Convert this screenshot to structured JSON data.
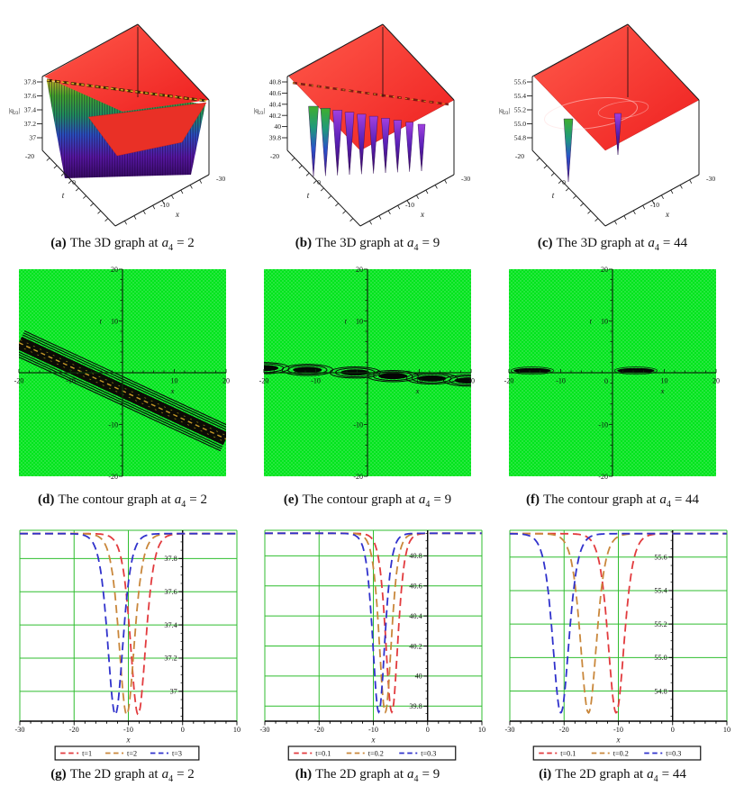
{
  "figure_title": "Nine-panel figure: 3D, contour and 2D graphs of |q23| for a4 = 2, 9, 44",
  "chart_data": [
    {
      "id": "a",
      "type": "surface3d",
      "caption": {
        "tag": "(a)",
        "body": "The 3D graph at",
        "param": "a",
        "sub": "4",
        "eq": "= 2"
      },
      "z_axis": {
        "label_pre": "|q",
        "label_sub": "23",
        "label_post": "|",
        "ticks": [
          "37.8",
          "37.6",
          "37.4",
          "37.2",
          "37"
        ]
      },
      "t_axis": {
        "label": "t",
        "ticks": [
          "-20",
          "0"
        ]
      },
      "x_axis": {
        "label": "x",
        "ticks": [
          "-10",
          "-30"
        ]
      },
      "z_range": [
        36.9,
        37.95
      ],
      "surface": {
        "style": "line-soliton",
        "description": "red plateau plane with one diagonal line-soliton trench; trench wall rendered as striped rainbow curtain",
        "plane_color": "#f2302a"
      }
    },
    {
      "id": "b",
      "type": "surface3d",
      "caption": {
        "tag": "(b)",
        "body": "The 3D graph at",
        "param": "a",
        "sub": "4",
        "eq": "= 9"
      },
      "z_axis": {
        "label_pre": "|q",
        "label_sub": "23",
        "label_post": "|",
        "ticks": [
          "40.8",
          "40.6",
          "40.4",
          "40.2",
          "40",
          "39.8"
        ]
      },
      "t_axis": {
        "label": "t",
        "ticks": [
          "-20",
          "0"
        ]
      },
      "x_axis": {
        "label": "x",
        "ticks": [
          "-10",
          "-30"
        ]
      },
      "z_range": [
        39.8,
        40.9
      ],
      "surface": {
        "style": "spike-row",
        "spike_count": 10,
        "description": "red plateau plane with a periodic row of downward purple spikes",
        "plane_color": "#f2302a"
      }
    },
    {
      "id": "c",
      "type": "surface3d",
      "caption": {
        "tag": "(c)",
        "body": "The 3D graph at",
        "param": "a",
        "sub": "4",
        "eq": "= 44"
      },
      "z_axis": {
        "label_pre": "|q",
        "label_sub": "23",
        "label_post": "|",
        "ticks": [
          "55.6",
          "55.4",
          "55.2",
          "55.0",
          "54.8"
        ]
      },
      "t_axis": {
        "label": "t",
        "ticks": [
          "-20",
          "0"
        ]
      },
      "x_axis": {
        "label": "x",
        "ticks": [
          "-10",
          "-30"
        ]
      },
      "z_range": [
        54.7,
        55.7
      ],
      "surface": {
        "style": "two-spikes",
        "description": "red plateau plane with two isolated narrow downward spikes",
        "plane_color": "#f2302a"
      }
    },
    {
      "id": "d",
      "type": "contour",
      "caption": {
        "tag": "(d)",
        "body": "The contour graph at",
        "param": "a",
        "sub": "4",
        "eq": "= 2"
      },
      "x_axis": {
        "label": "x",
        "range": [
          -20,
          20
        ],
        "ticks": [
          -20,
          -10,
          10,
          20
        ]
      },
      "t_axis": {
        "label": "t",
        "range": [
          -20,
          20
        ],
        "ticks": [
          20,
          10,
          -10,
          -20
        ]
      },
      "background": "#00e41c",
      "feature": {
        "kind": "diagonal-band",
        "from": [
          -20,
          5.8
        ],
        "to": [
          20,
          -12.8
        ],
        "core_width_units": 2.6,
        "centerline_color": "#c89a28"
      }
    },
    {
      "id": "e",
      "type": "contour",
      "caption": {
        "tag": "(e)",
        "body": "The contour graph at",
        "param": "a",
        "sub": "4",
        "eq": "= 9"
      },
      "x_axis": {
        "label": "x",
        "range": [
          -20,
          20
        ],
        "ticks": [
          -20,
          -10,
          10,
          20
        ]
      },
      "t_axis": {
        "label": "t",
        "range": [
          -20,
          20
        ],
        "ticks": [
          20,
          10,
          -10,
          -20
        ]
      },
      "background": "#00e41c",
      "feature": {
        "kind": "blob-row",
        "blobs": [
          [
            -20,
            0.9
          ],
          [
            -11.6,
            0.55
          ],
          [
            -2.4,
            0.05
          ],
          [
            4.9,
            -0.65
          ],
          [
            12.4,
            -1.1
          ],
          [
            19.6,
            -1.5
          ]
        ],
        "rx_units": 2.8,
        "ry_units": 0.6
      }
    },
    {
      "id": "f",
      "type": "contour",
      "caption": {
        "tag": "(f)",
        "body": "The contour graph at",
        "param": "a",
        "sub": "4",
        "eq": "= 44"
      },
      "x_axis": {
        "label": "x",
        "range": [
          -20,
          20
        ],
        "ticks": [
          -20,
          -10,
          10,
          20
        ]
      },
      "t_axis": {
        "label": "t",
        "range": [
          -20,
          20
        ],
        "ticks": [
          20,
          10,
          -10,
          -20
        ]
      },
      "background": "#00e41c",
      "origin_label": "0",
      "feature": {
        "kind": "flat-ellipses",
        "ellipses": [
          [
            -15.5,
            0.4
          ],
          [
            4.5,
            0.4
          ]
        ],
        "rx_units": 3.6,
        "ry_units": 0.5
      }
    },
    {
      "id": "g",
      "type": "line",
      "caption": {
        "tag": "(g)",
        "body": "The 2D graph at",
        "param": "a",
        "sub": "4",
        "eq": "= 2"
      },
      "x_axis": {
        "label": "x",
        "range": [
          -30,
          10
        ],
        "ticks": [
          -30,
          -20,
          -10,
          0,
          10
        ]
      },
      "y_axis": {
        "range": [
          36.82,
          37.97
        ],
        "ticks": [
          {
            "label": "37",
            "v": 37
          },
          {
            "label": "37.2",
            "v": 37.2
          },
          {
            "label": "37.4",
            "v": 37.4
          },
          {
            "label": "37.6",
            "v": 37.6
          },
          {
            "label": "37.8",
            "v": 37.8
          }
        ]
      },
      "baseline": 37.95,
      "series": [
        {
          "name": "t=1",
          "color": "#e23b3e",
          "center": -8.2,
          "width": 1.9,
          "depth": 1.09
        },
        {
          "name": "t=2",
          "color": "#c9873b",
          "center": -10.3,
          "width": 1.9,
          "depth": 1.09
        },
        {
          "name": "t=3",
          "color": "#3032cc",
          "center": -12.4,
          "width": 1.9,
          "depth": 1.09
        }
      ],
      "grid_color": "#2fbe2f"
    },
    {
      "id": "h",
      "type": "line",
      "caption": {
        "tag": "(h)",
        "body": "The 2D graph at",
        "param": "a",
        "sub": "4",
        "eq": "= 9"
      },
      "x_axis": {
        "label": "x",
        "range": [
          -30,
          10
        ],
        "ticks": [
          -30,
          -20,
          -10,
          0,
          10
        ]
      },
      "y_axis": {
        "range": [
          39.7,
          40.97
        ],
        "ticks": [
          {
            "label": "39.8",
            "v": 39.8
          },
          {
            "label": "40",
            "v": 40
          },
          {
            "label": "40.2",
            "v": 40.2
          },
          {
            "label": "40.4",
            "v": 40.4
          },
          {
            "label": "40.6",
            "v": 40.6
          },
          {
            "label": "40.8",
            "v": 40.8
          }
        ]
      },
      "baseline": 40.95,
      "series": [
        {
          "name": "t=0.1",
          "color": "#e23b3e",
          "center": -6.6,
          "width": 1.5,
          "depth": 1.19
        },
        {
          "name": "t=0.2",
          "color": "#c9873b",
          "center": -7.8,
          "width": 1.5,
          "depth": 1.19
        },
        {
          "name": "t=0.3",
          "color": "#3032cc",
          "center": -9.0,
          "width": 1.5,
          "depth": 1.19
        }
      ],
      "grid_color": "#2fbe2f"
    },
    {
      "id": "i",
      "type": "line",
      "caption": {
        "tag": "(i)",
        "body": "The 2D graph at",
        "param": "a",
        "sub": "4",
        "eq": "= 44"
      },
      "x_axis": {
        "label": "x",
        "range": [
          -30,
          10
        ],
        "ticks": [
          -30,
          -20,
          -10,
          0,
          10
        ]
      },
      "y_axis": {
        "range": [
          54.62,
          55.76
        ],
        "ticks": [
          {
            "label": "54.8",
            "v": 54.8
          },
          {
            "label": "55.0",
            "v": 55
          },
          {
            "label": "55.2",
            "v": 55.2
          },
          {
            "label": "55.4",
            "v": 55.4
          },
          {
            "label": "55.6",
            "v": 55.6
          }
        ]
      },
      "baseline": 55.74,
      "series": [
        {
          "name": "t=0.1",
          "color": "#e23b3e",
          "center": -10.4,
          "width": 2.0,
          "depth": 1.07
        },
        {
          "name": "t=0.2",
          "color": "#c9873b",
          "center": -15.5,
          "width": 2.0,
          "depth": 1.07
        },
        {
          "name": "t=0.3",
          "color": "#3032cc",
          "center": -20.6,
          "width": 2.0,
          "depth": 1.07
        }
      ],
      "grid_color": "#2fbe2f"
    }
  ]
}
